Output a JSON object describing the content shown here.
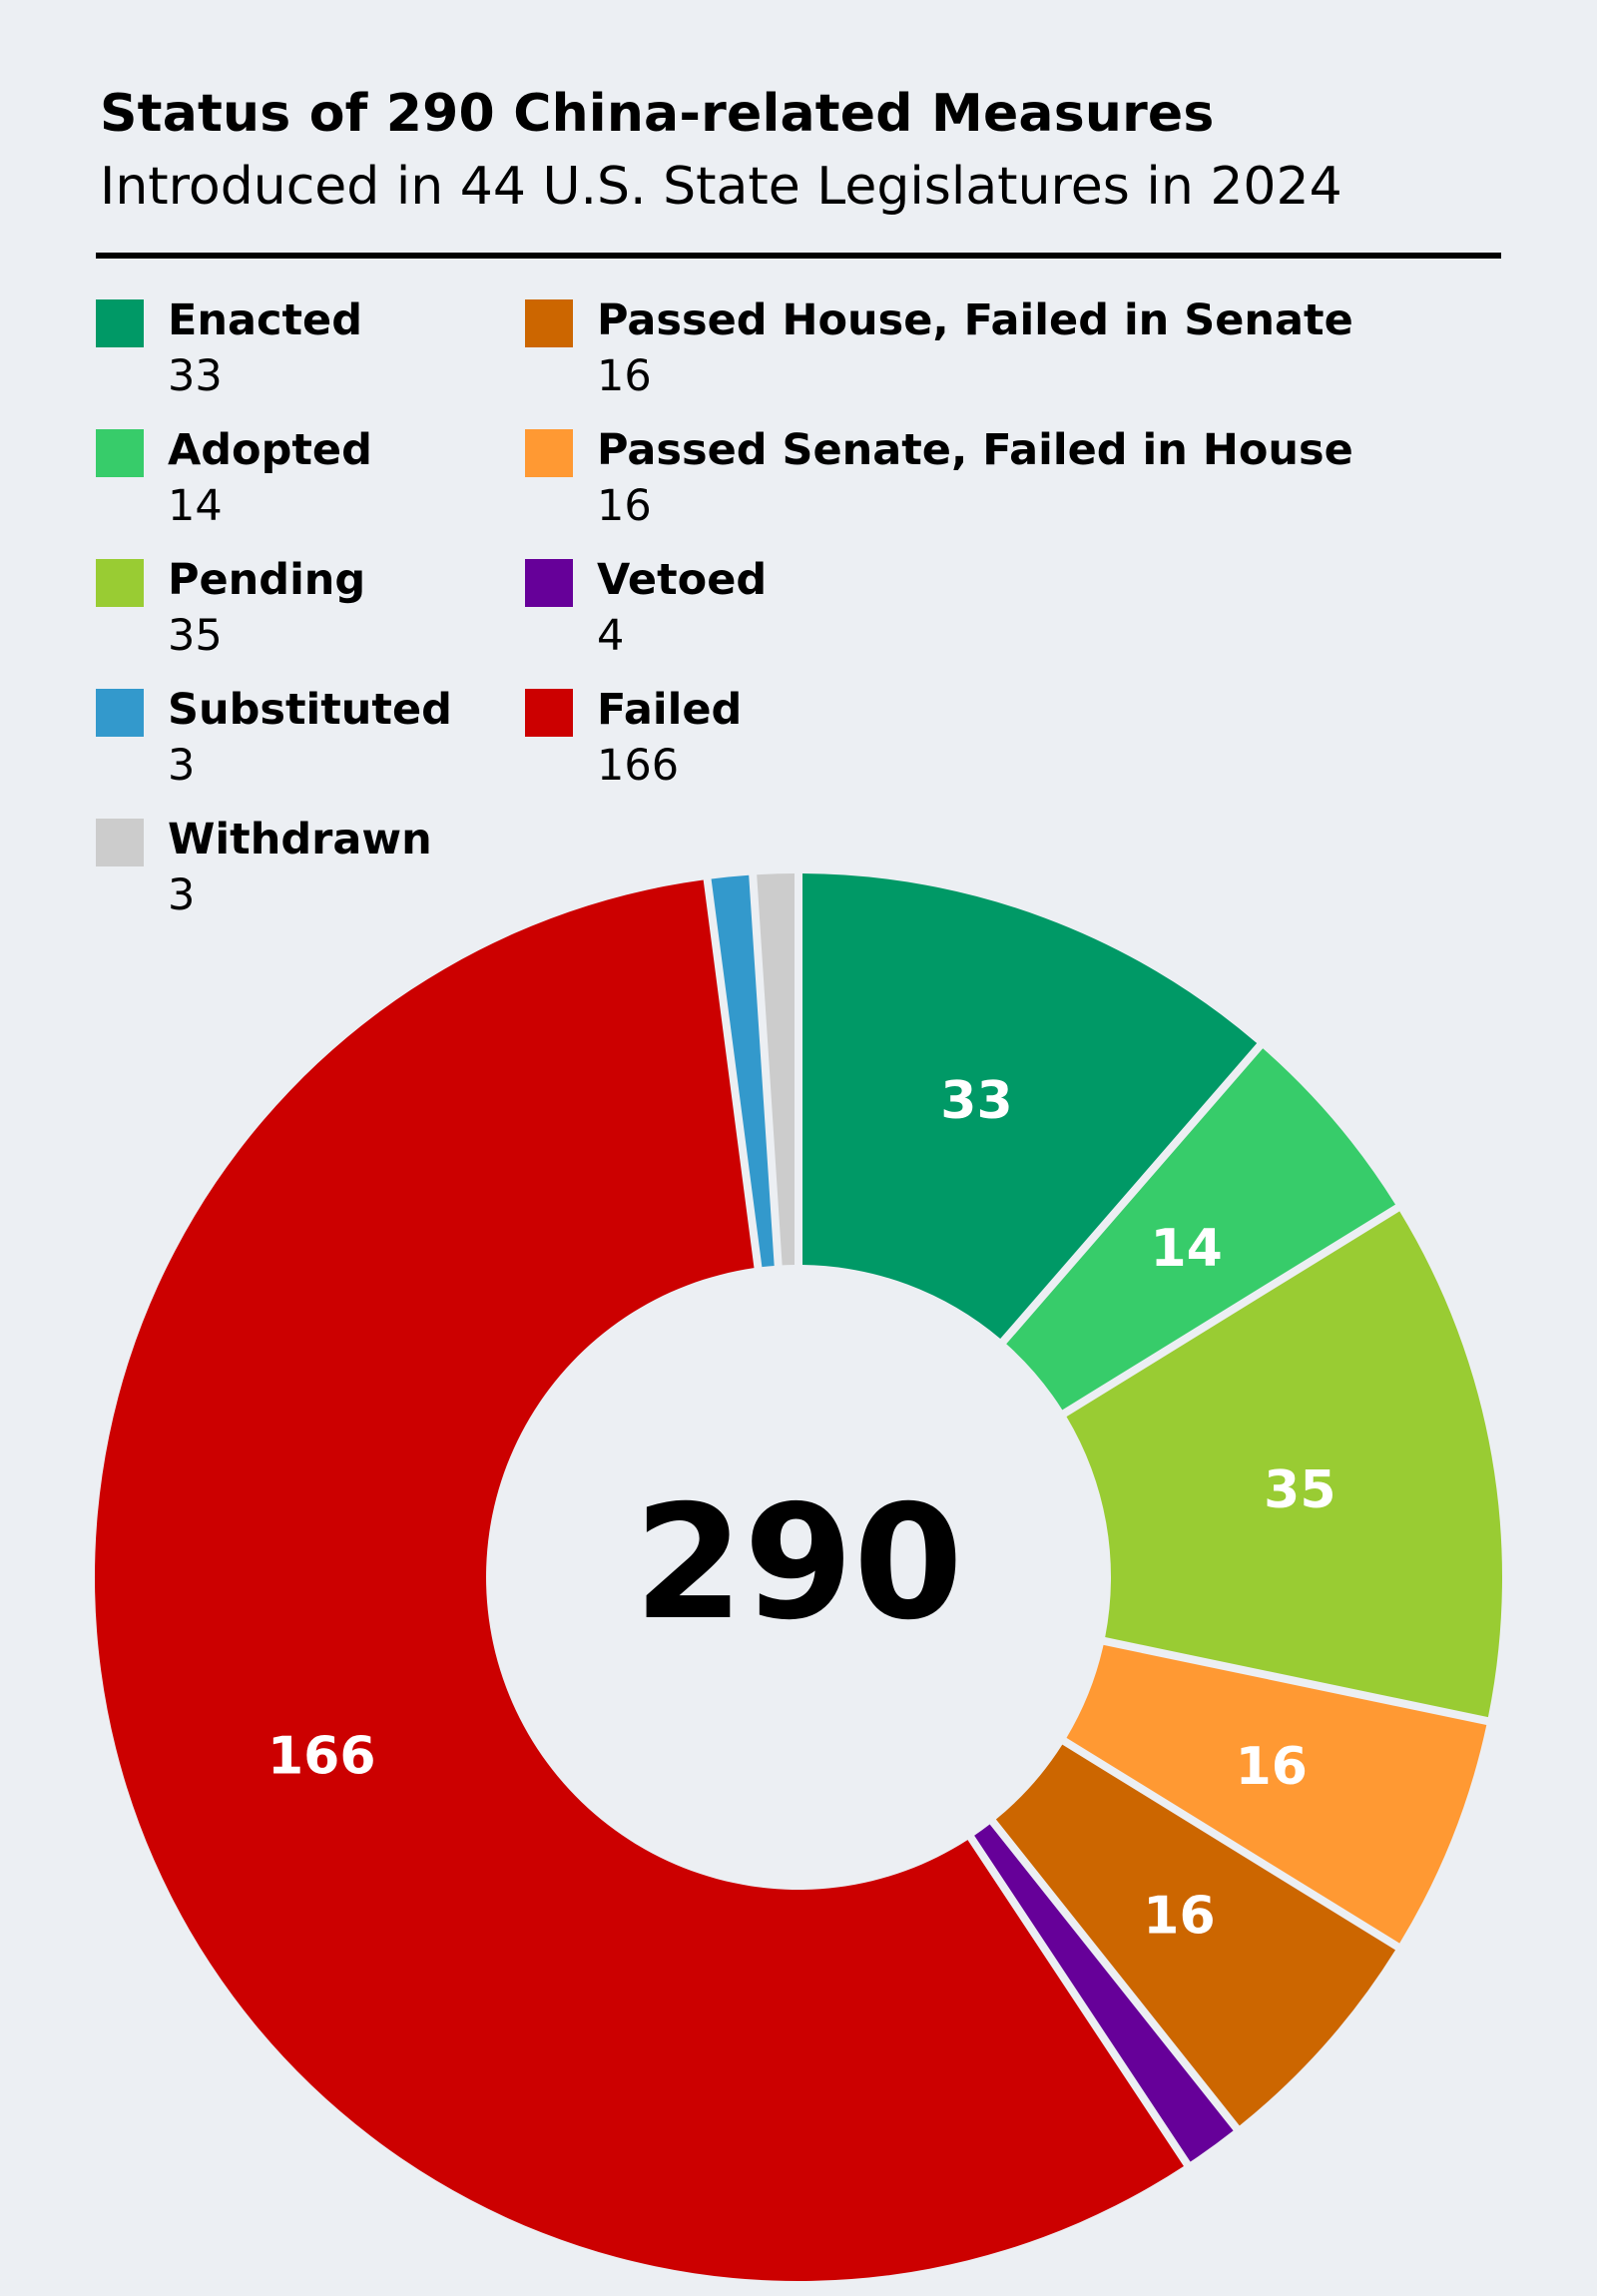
{
  "header": {
    "title": "Status of 290 China-related Measures",
    "subtitle": "Introduced in 44 U.S. State Legislatures in 2024"
  },
  "chart_data": {
    "type": "pie",
    "style": "donut",
    "center_label": "290",
    "total": 290,
    "slices": [
      {
        "label": "Enacted",
        "value": 33,
        "color": "#009966"
      },
      {
        "label": "Adopted",
        "value": 14,
        "color": "#37CC6A"
      },
      {
        "label": "Pending",
        "value": 35,
        "color": "#99CC33"
      },
      {
        "label": "Passed Senate, Failed in House",
        "value": 16,
        "color": "#FF9933"
      },
      {
        "label": "Passed House, Failed in Senate",
        "value": 16,
        "color": "#CC6600"
      },
      {
        "label": "Vetoed",
        "value": 4,
        "color": "#660099"
      },
      {
        "label": "Failed",
        "value": 166,
        "color": "#CC0000"
      },
      {
        "label": "Substituted",
        "value": 3,
        "color": "#3399CC"
      },
      {
        "label": "Withdrawn",
        "value": 3,
        "color": "#CCCCCC"
      }
    ],
    "legend": {
      "columns": [
        [
          {
            "label": "Enacted",
            "value": "33",
            "color": "#009966"
          },
          {
            "label": "Adopted",
            "value": "14",
            "color": "#37CC6A"
          },
          {
            "label": "Pending",
            "value": "35",
            "color": "#99CC33"
          },
          {
            "label": "Substituted",
            "value": "3",
            "color": "#3399CC"
          },
          {
            "label": "Withdrawn",
            "value": "3",
            "color": "#CCCCCC"
          }
        ],
        [
          {
            "label": "Passed House, Failed in Senate",
            "value": "16",
            "color": "#CC6600"
          },
          {
            "label": "Passed Senate, Failed in House",
            "value": "16",
            "color": "#FF9933"
          },
          {
            "label": "Vetoed",
            "value": "4",
            "color": "#660099"
          },
          {
            "label": "Failed",
            "value": "166",
            "color": "#CC0000"
          }
        ]
      ]
    },
    "data_labels": {
      "show": true,
      "hidden_for": [
        "Vetoed",
        "Substituted",
        "Withdrawn"
      ]
    }
  }
}
